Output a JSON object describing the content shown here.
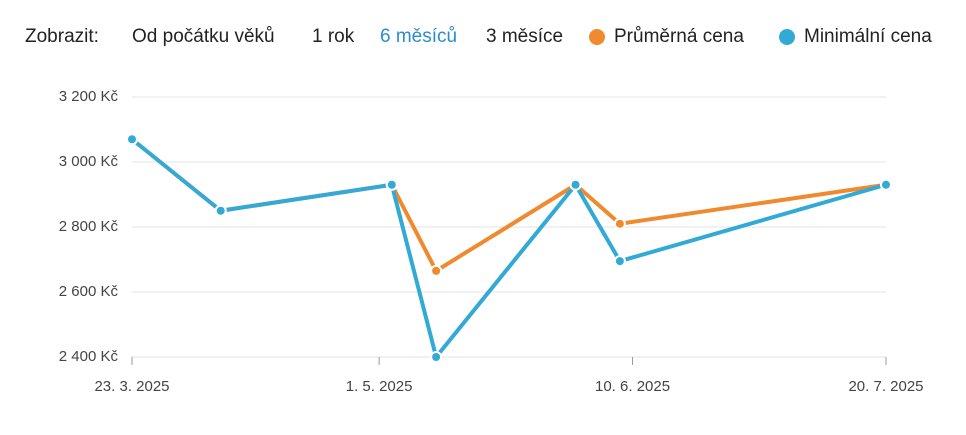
{
  "controls": {
    "label": "Zobrazit:",
    "options": [
      "Od počátku věků",
      "1 rok",
      "6 měsíců",
      "3 měsíce"
    ],
    "selected": 2,
    "selected_color": "#2a8ccf"
  },
  "chart_data": {
    "type": "line",
    "x": [
      "2025-03-23",
      "2025-04-06",
      "2025-05-03",
      "2025-05-10",
      "2025-06-01",
      "2025-06-08",
      "2025-07-20"
    ],
    "series": [
      {
        "name": "Průměrná cena",
        "color": "#ef8a2e",
        "values": [
          3070,
          2850,
          2930,
          2665,
          2930,
          2810,
          2930
        ]
      },
      {
        "name": "Minimální cena",
        "color": "#33a9d6",
        "values": [
          3070,
          2850,
          2930,
          2400,
          2930,
          2695,
          2930
        ]
      }
    ],
    "xlim": [
      "2025-03-23",
      "2025-07-20"
    ],
    "xticks": [
      {
        "value": "2025-03-23",
        "label": "23. 3. 2025"
      },
      {
        "value": "2025-05-01",
        "label": "1. 5. 2025"
      },
      {
        "value": "2025-06-10",
        "label": "10. 6. 2025"
      },
      {
        "value": "2025-07-20",
        "label": "20. 7. 2025"
      }
    ],
    "ylim": [
      2400,
      3200
    ],
    "yticks": [
      {
        "value": 2400,
        "label": "2 400 Kč"
      },
      {
        "value": 2600,
        "label": "2 600 Kč"
      },
      {
        "value": 2800,
        "label": "2 800 Kč"
      },
      {
        "value": 3000,
        "label": "3 000 Kč"
      },
      {
        "value": 3200,
        "label": "3 200 Kč"
      }
    ],
    "grid": true
  }
}
